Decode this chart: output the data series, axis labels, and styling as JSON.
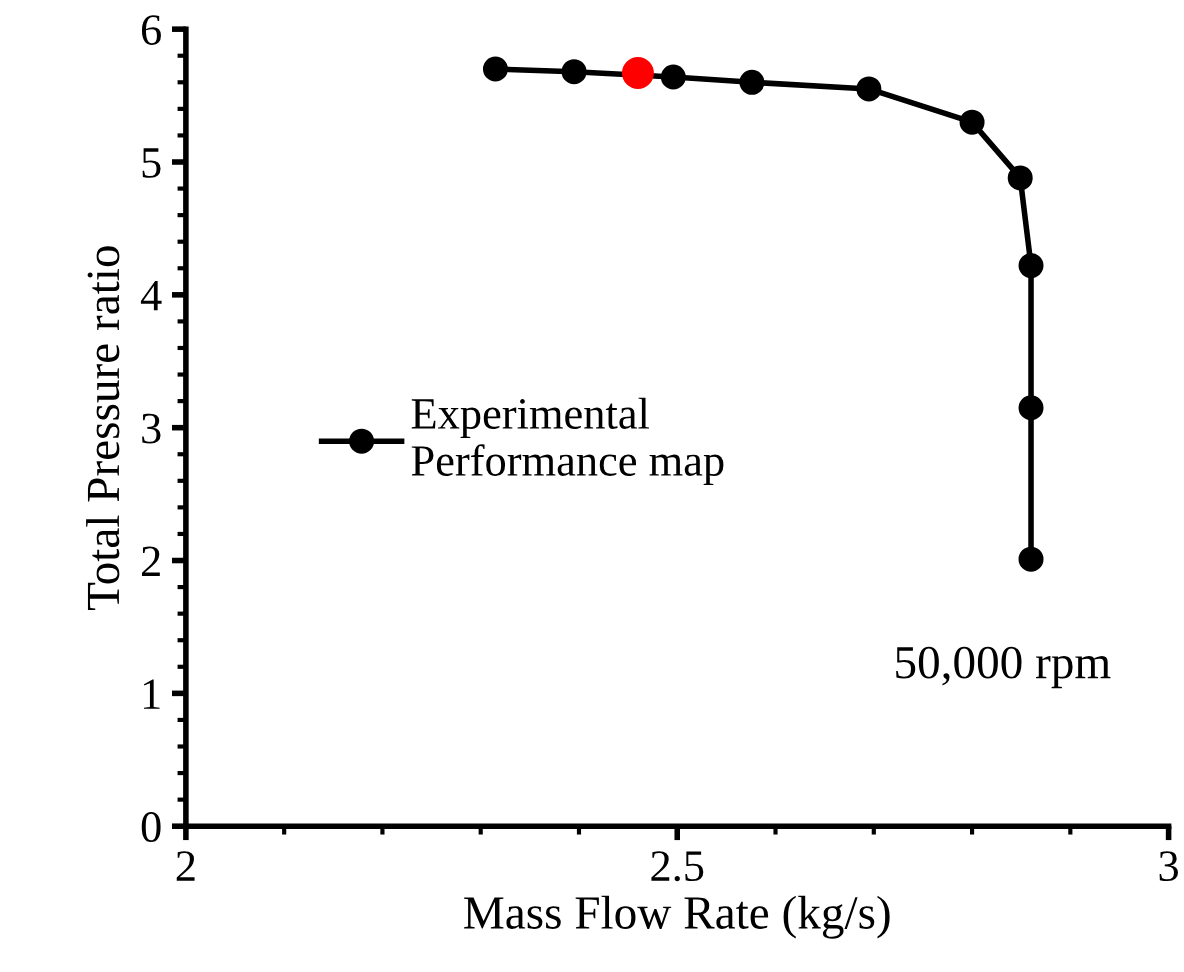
{
  "chart_data": {
    "type": "line",
    "xlabel": "Mass Flow Rate (kg/s)",
    "ylabel": "Total Pressure ratio",
    "series": [
      {
        "name": "Experimental\nPerformance map",
        "color": "#000000",
        "marker": "circle",
        "x": [
          2.315,
          2.395,
          2.496,
          2.576,
          2.695,
          2.8,
          2.849,
          2.86,
          2.86,
          2.86
        ],
        "values": [
          5.7,
          5.68,
          5.64,
          5.6,
          5.55,
          5.3,
          4.88,
          4.22,
          3.15,
          2.01
        ]
      },
      {
        "type": "scatter",
        "color": "#ff0000",
        "marker": "circle",
        "x": [
          2.46
        ],
        "values": [
          5.67
        ]
      }
    ],
    "xlim": [
      2,
      3
    ],
    "ylim": [
      0,
      6
    ],
    "xticks": [
      2,
      {
        "value": 2.1,
        "label": null
      },
      {
        "value": 2.2,
        "label": null
      },
      {
        "value": 2.3,
        "label": null
      },
      {
        "value": 2.4,
        "label": null
      },
      2.5,
      {
        "value": 2.6,
        "label": null
      },
      {
        "value": 2.7,
        "label": null
      },
      {
        "value": 2.8,
        "label": null
      },
      {
        "value": 2.9,
        "label": null
      },
      3
    ],
    "yticks": [
      0,
      {
        "value": 0.2,
        "label": null
      },
      {
        "value": 0.4,
        "label": null
      },
      {
        "value": 0.6,
        "label": null
      },
      {
        "value": 0.8,
        "label": null
      },
      1,
      {
        "value": 1.2,
        "label": null
      },
      {
        "value": 1.4,
        "label": null
      },
      {
        "value": 1.6,
        "label": null
      },
      {
        "value": 1.8,
        "label": null
      },
      2,
      {
        "value": 2.2,
        "label": null
      },
      {
        "value": 2.4,
        "label": null
      },
      {
        "value": 2.6,
        "label": null
      },
      {
        "value": 2.8,
        "label": null
      },
      3,
      {
        "value": 3.2,
        "label": null
      },
      {
        "value": 3.4,
        "label": null
      },
      {
        "value": 3.6,
        "label": null
      },
      {
        "value": 3.8,
        "label": null
      },
      4,
      {
        "value": 4.2,
        "label": null
      },
      {
        "value": 4.4,
        "label": null
      },
      {
        "value": 4.6,
        "label": null
      },
      {
        "value": 4.8,
        "label": null
      },
      5,
      {
        "value": 5.2,
        "label": null
      },
      {
        "value": 5.4,
        "label": null
      },
      {
        "value": 5.6,
        "label": null
      },
      {
        "value": 5.8,
        "label": null
      },
      6
    ],
    "legend": "left",
    "annotations": [
      "50,000 rpm"
    ]
  }
}
